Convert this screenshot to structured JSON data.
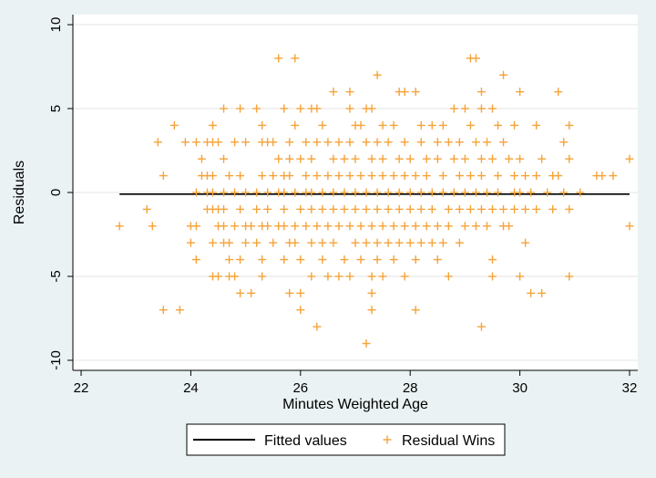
{
  "colors": {
    "page_background": "#eaf2f3",
    "plot_background": "#ffffff",
    "fitted_line": "#000000",
    "marker": "#f5a33a",
    "grid": "#e6e6e6"
  },
  "chart_data": {
    "type": "scatter",
    "title": "",
    "xlabel": "Minutes Weighted Age",
    "ylabel": "Residuals",
    "xlim": [
      22,
      32
    ],
    "ylim": [
      -10,
      10
    ],
    "x_ticks": [
      22,
      24,
      26,
      28,
      30,
      32
    ],
    "y_ticks": [
      -10,
      -5,
      0,
      5,
      10
    ],
    "x_tick_labels": [
      "22",
      "24",
      "26",
      "28",
      "30",
      "32"
    ],
    "y_tick_labels": [
      "-10",
      "-5",
      "0",
      "5",
      "10"
    ],
    "grid": true,
    "legend_position": "bottom",
    "legend": [
      {
        "label": "Fitted values",
        "marker": "line"
      },
      {
        "label": "Residual Wins",
        "marker": "plus"
      }
    ],
    "series": [
      {
        "name": "Fitted values",
        "type": "line",
        "points": [
          [
            22.7,
            -0.1
          ],
          [
            32.0,
            -0.1
          ]
        ]
      },
      {
        "name": "Residual Wins",
        "type": "scatter",
        "marker": "plus",
        "points": [
          [
            22.7,
            -2
          ],
          [
            23.2,
            -1
          ],
          [
            23.3,
            -2
          ],
          [
            23.4,
            3
          ],
          [
            23.5,
            1
          ],
          [
            23.5,
            -7
          ],
          [
            23.7,
            4
          ],
          [
            23.8,
            -7
          ],
          [
            23.9,
            3
          ],
          [
            24.0,
            -2
          ],
          [
            24.0,
            -3
          ],
          [
            24.1,
            -4
          ],
          [
            24.1,
            3
          ],
          [
            24.1,
            -2
          ],
          [
            24.1,
            0
          ],
          [
            24.2,
            2
          ],
          [
            24.2,
            1
          ],
          [
            24.3,
            1
          ],
          [
            24.3,
            0
          ],
          [
            24.3,
            -1
          ],
          [
            24.3,
            3
          ],
          [
            24.4,
            4
          ],
          [
            24.4,
            3
          ],
          [
            24.4,
            1
          ],
          [
            24.4,
            0
          ],
          [
            24.4,
            -1
          ],
          [
            24.4,
            -3
          ],
          [
            24.4,
            -5
          ],
          [
            24.5,
            -2
          ],
          [
            24.5,
            3
          ],
          [
            24.5,
            -1
          ],
          [
            24.5,
            -5
          ],
          [
            24.6,
            5
          ],
          [
            24.6,
            -3
          ],
          [
            24.6,
            0
          ],
          [
            24.6,
            -2
          ],
          [
            24.6,
            -1
          ],
          [
            24.6,
            2
          ],
          [
            24.7,
            1
          ],
          [
            24.7,
            -3
          ],
          [
            24.7,
            -4
          ],
          [
            24.7,
            -5
          ],
          [
            24.8,
            0
          ],
          [
            24.8,
            -2
          ],
          [
            24.8,
            3
          ],
          [
            24.8,
            -5
          ],
          [
            24.9,
            5
          ],
          [
            24.9,
            1
          ],
          [
            24.9,
            -1
          ],
          [
            24.9,
            -4
          ],
          [
            24.9,
            -6
          ],
          [
            25.0,
            0
          ],
          [
            25.0,
            -2
          ],
          [
            25.0,
            -3
          ],
          [
            25.0,
            3
          ],
          [
            25.1,
            -6
          ],
          [
            25.1,
            -2
          ],
          [
            25.2,
            5
          ],
          [
            25.2,
            0
          ],
          [
            25.2,
            -1
          ],
          [
            25.2,
            -3
          ],
          [
            25.3,
            4
          ],
          [
            25.3,
            3
          ],
          [
            25.3,
            1
          ],
          [
            25.3,
            -2
          ],
          [
            25.3,
            -4
          ],
          [
            25.3,
            -5
          ],
          [
            25.4,
            0
          ],
          [
            25.4,
            3
          ],
          [
            25.4,
            -1
          ],
          [
            25.4,
            -2
          ],
          [
            25.5,
            3
          ],
          [
            25.5,
            1
          ],
          [
            25.5,
            -3
          ],
          [
            25.6,
            8
          ],
          [
            25.6,
            2
          ],
          [
            25.6,
            0
          ],
          [
            25.6,
            -2
          ],
          [
            25.7,
            5
          ],
          [
            25.7,
            1
          ],
          [
            25.7,
            0
          ],
          [
            25.7,
            -1
          ],
          [
            25.7,
            -2
          ],
          [
            25.7,
            -4
          ],
          [
            25.8,
            3
          ],
          [
            25.8,
            2
          ],
          [
            25.8,
            1
          ],
          [
            25.8,
            -3
          ],
          [
            25.8,
            -6
          ],
          [
            25.9,
            8
          ],
          [
            25.9,
            4
          ],
          [
            25.9,
            0
          ],
          [
            25.9,
            -2
          ],
          [
            25.9,
            -3
          ],
          [
            26.0,
            5
          ],
          [
            26.0,
            2
          ],
          [
            26.0,
            -1
          ],
          [
            26.0,
            -4
          ],
          [
            26.0,
            -6
          ],
          [
            26.0,
            -7
          ],
          [
            26.1,
            3
          ],
          [
            26.1,
            1
          ],
          [
            26.1,
            0
          ],
          [
            26.1,
            -2
          ],
          [
            26.2,
            5
          ],
          [
            26.2,
            2
          ],
          [
            26.2,
            0
          ],
          [
            26.2,
            -1
          ],
          [
            26.2,
            -3
          ],
          [
            26.2,
            -5
          ],
          [
            26.3,
            5
          ],
          [
            26.3,
            3
          ],
          [
            26.3,
            1
          ],
          [
            26.3,
            -2
          ],
          [
            26.3,
            -8
          ],
          [
            26.4,
            4
          ],
          [
            26.4,
            0
          ],
          [
            26.4,
            -1
          ],
          [
            26.4,
            -3
          ],
          [
            26.4,
            -4
          ],
          [
            26.5,
            3
          ],
          [
            26.5,
            1
          ],
          [
            26.5,
            -2
          ],
          [
            26.5,
            -5
          ],
          [
            26.6,
            6
          ],
          [
            26.6,
            2
          ],
          [
            26.6,
            0
          ],
          [
            26.6,
            -1
          ],
          [
            26.6,
            -3
          ],
          [
            26.7,
            3
          ],
          [
            26.7,
            1
          ],
          [
            26.7,
            -2
          ],
          [
            26.7,
            -5
          ],
          [
            26.8,
            2
          ],
          [
            26.8,
            0
          ],
          [
            26.8,
            -1
          ],
          [
            26.8,
            -4
          ],
          [
            26.9,
            6
          ],
          [
            26.9,
            5
          ],
          [
            26.9,
            3
          ],
          [
            26.9,
            1
          ],
          [
            26.9,
            -2
          ],
          [
            26.9,
            -5
          ],
          [
            27.0,
            4
          ],
          [
            27.0,
            2
          ],
          [
            27.0,
            0
          ],
          [
            27.0,
            -1
          ],
          [
            27.0,
            -3
          ],
          [
            27.1,
            4
          ],
          [
            27.1,
            1
          ],
          [
            27.1,
            -2
          ],
          [
            27.1,
            -4
          ],
          [
            27.2,
            5
          ],
          [
            27.2,
            3
          ],
          [
            27.2,
            0
          ],
          [
            27.2,
            -1
          ],
          [
            27.2,
            -3
          ],
          [
            27.2,
            -9
          ],
          [
            27.3,
            5
          ],
          [
            27.3,
            2
          ],
          [
            27.3,
            1
          ],
          [
            27.3,
            -2
          ],
          [
            27.3,
            -5
          ],
          [
            27.3,
            -6
          ],
          [
            27.3,
            -7
          ],
          [
            27.4,
            7
          ],
          [
            27.4,
            3
          ],
          [
            27.4,
            0
          ],
          [
            27.4,
            -1
          ],
          [
            27.4,
            -3
          ],
          [
            27.4,
            -4
          ],
          [
            27.5,
            4
          ],
          [
            27.5,
            2
          ],
          [
            27.5,
            1
          ],
          [
            27.5,
            -2
          ],
          [
            27.5,
            -5
          ],
          [
            27.6,
            3
          ],
          [
            27.6,
            0
          ],
          [
            27.6,
            -1
          ],
          [
            27.6,
            -3
          ],
          [
            27.7,
            4
          ],
          [
            27.7,
            1
          ],
          [
            27.7,
            -2
          ],
          [
            27.7,
            -4
          ],
          [
            27.8,
            6
          ],
          [
            27.8,
            2
          ],
          [
            27.8,
            0
          ],
          [
            27.8,
            -1
          ],
          [
            27.8,
            -3
          ],
          [
            27.9,
            6
          ],
          [
            27.9,
            3
          ],
          [
            27.9,
            1
          ],
          [
            27.9,
            -2
          ],
          [
            27.9,
            -5
          ],
          [
            28.0,
            2
          ],
          [
            28.0,
            0
          ],
          [
            28.0,
            -1
          ],
          [
            28.0,
            -3
          ],
          [
            28.1,
            6
          ],
          [
            28.1,
            1
          ],
          [
            28.1,
            -2
          ],
          [
            28.1,
            -4
          ],
          [
            28.1,
            -7
          ],
          [
            28.2,
            4
          ],
          [
            28.2,
            3
          ],
          [
            28.2,
            0
          ],
          [
            28.2,
            -1
          ],
          [
            28.2,
            -3
          ],
          [
            28.3,
            2
          ],
          [
            28.3,
            1
          ],
          [
            28.3,
            -2
          ],
          [
            28.4,
            4
          ],
          [
            28.4,
            0
          ],
          [
            28.4,
            -1
          ],
          [
            28.4,
            -3
          ],
          [
            28.5,
            3
          ],
          [
            28.5,
            2
          ],
          [
            28.5,
            -2
          ],
          [
            28.5,
            -4
          ],
          [
            28.6,
            4
          ],
          [
            28.6,
            1
          ],
          [
            28.6,
            0
          ],
          [
            28.6,
            -3
          ],
          [
            28.7,
            3
          ],
          [
            28.7,
            -1
          ],
          [
            28.7,
            -2
          ],
          [
            28.7,
            -5
          ],
          [
            28.8,
            5
          ],
          [
            28.8,
            2
          ],
          [
            28.8,
            0
          ],
          [
            28.9,
            3
          ],
          [
            28.9,
            1
          ],
          [
            28.9,
            -1
          ],
          [
            28.9,
            -3
          ],
          [
            29.0,
            5
          ],
          [
            29.0,
            2
          ],
          [
            29.0,
            0
          ],
          [
            29.0,
            -2
          ],
          [
            29.1,
            8
          ],
          [
            29.1,
            4
          ],
          [
            29.1,
            1
          ],
          [
            29.1,
            -1
          ],
          [
            29.2,
            8
          ],
          [
            29.2,
            3
          ],
          [
            29.2,
            0
          ],
          [
            29.2,
            -2
          ],
          [
            29.3,
            6
          ],
          [
            29.3,
            5
          ],
          [
            29.3,
            2
          ],
          [
            29.3,
            1
          ],
          [
            29.3,
            -1
          ],
          [
            29.3,
            -8
          ],
          [
            29.4,
            3
          ],
          [
            29.4,
            0
          ],
          [
            29.4,
            -2
          ],
          [
            29.5,
            5
          ],
          [
            29.5,
            2
          ],
          [
            29.5,
            -1
          ],
          [
            29.5,
            -4
          ],
          [
            29.5,
            -5
          ],
          [
            29.6,
            4
          ],
          [
            29.6,
            1
          ],
          [
            29.6,
            0
          ],
          [
            29.7,
            7
          ],
          [
            29.7,
            3
          ],
          [
            29.7,
            -1
          ],
          [
            29.7,
            -2
          ],
          [
            29.8,
            2
          ],
          [
            29.8,
            -2
          ],
          [
            29.9,
            4
          ],
          [
            29.9,
            1
          ],
          [
            29.9,
            0
          ],
          [
            29.9,
            -1
          ],
          [
            30.0,
            6
          ],
          [
            30.0,
            2
          ],
          [
            30.0,
            0
          ],
          [
            30.0,
            -5
          ],
          [
            30.1,
            -3
          ],
          [
            30.1,
            1
          ],
          [
            30.1,
            -1
          ],
          [
            30.2,
            0
          ],
          [
            30.2,
            -6
          ],
          [
            30.3,
            4
          ],
          [
            30.3,
            1
          ],
          [
            30.3,
            -1
          ],
          [
            30.4,
            2
          ],
          [
            30.4,
            -6
          ],
          [
            30.5,
            0
          ],
          [
            30.6,
            1
          ],
          [
            30.6,
            -1
          ],
          [
            30.7,
            6
          ],
          [
            30.7,
            1
          ],
          [
            30.8,
            3
          ],
          [
            30.8,
            0
          ],
          [
            30.9,
            4
          ],
          [
            30.9,
            2
          ],
          [
            30.9,
            -1
          ],
          [
            30.9,
            -5
          ],
          [
            31.1,
            0
          ],
          [
            31.4,
            1
          ],
          [
            31.5,
            1
          ],
          [
            31.7,
            1
          ],
          [
            32.0,
            2
          ],
          [
            32.0,
            -2
          ]
        ]
      }
    ]
  }
}
